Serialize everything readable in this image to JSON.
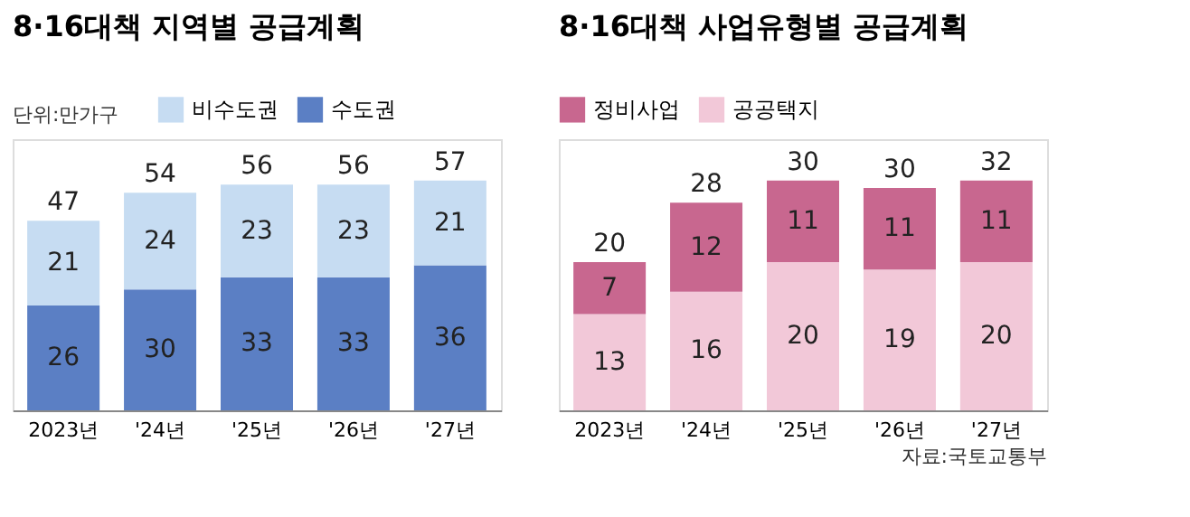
{
  "chart_data": [
    {
      "type": "bar",
      "title": "8·16대책 지역별 공급계획",
      "annotations": [
        "단위:만가구"
      ],
      "categories": [
        "2023년",
        "'24년",
        "'25년",
        "'26년",
        "'27년"
      ],
      "stacked": true,
      "data_labels": true,
      "legend": "top",
      "grid": false,
      "series": [
        {
          "name": "수도권",
          "color": "#5b7fc4",
          "values": [
            26,
            30,
            33,
            33,
            36
          ]
        },
        {
          "name": "비수도권",
          "color": "#c6dcf2",
          "values": [
            21,
            24,
            23,
            23,
            21
          ]
        }
      ],
      "totals": [
        "47",
        "54",
        "56",
        "56",
        "57"
      ]
    },
    {
      "type": "bar",
      "title": "8·16대책 사업유형별 공급계획",
      "annotations": [
        "자료:국토교통부"
      ],
      "categories": [
        "2023년",
        "'24년",
        "'25년",
        "'26년",
        "'27년"
      ],
      "stacked": true,
      "data_labels": true,
      "legend": "top",
      "grid": false,
      "series": [
        {
          "name": "공공택지",
          "color": "#f2c8d8",
          "values": [
            13,
            16,
            20,
            19,
            20
          ]
        },
        {
          "name": "정비사업",
          "color": "#c8678f",
          "values": [
            7,
            12,
            11,
            11,
            11
          ]
        }
      ],
      "totals": [
        "20",
        "28",
        "30",
        "30",
        "32"
      ]
    }
  ]
}
